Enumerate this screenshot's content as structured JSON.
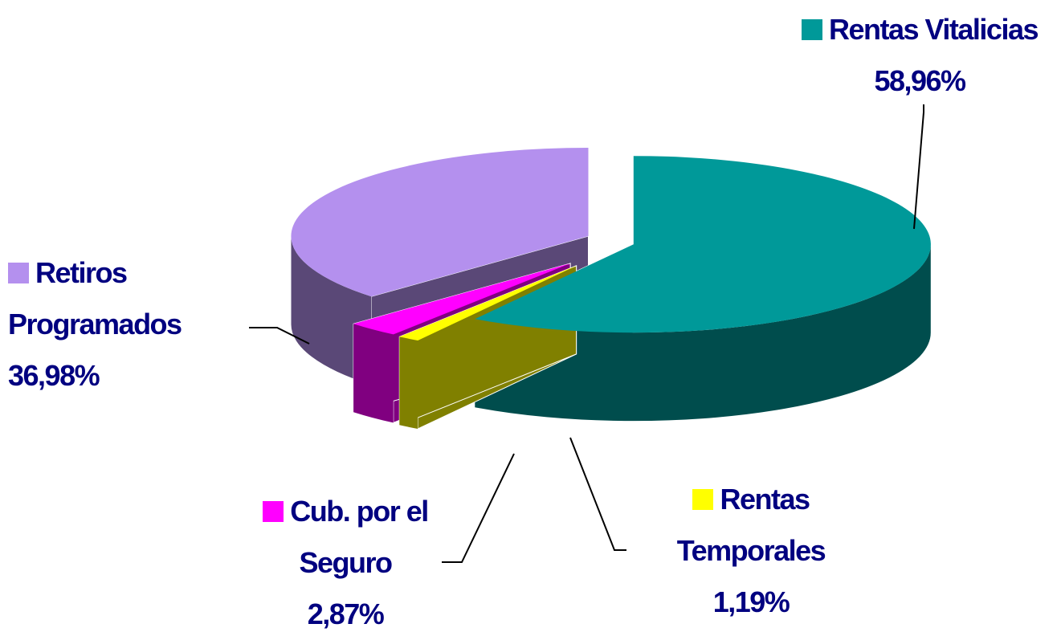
{
  "chart_data": {
    "type": "pie",
    "categories": [
      "Rentas Vitalicias",
      "Rentas Temporales",
      "Cub. por el Seguro",
      "Retiros Programados"
    ],
    "values": [
      58.96,
      1.19,
      2.87,
      36.98
    ],
    "value_labels": [
      "58,96%",
      "1,19%",
      "2,87%",
      "36,98%"
    ],
    "colors": [
      "#009999",
      "#ffff00",
      "#ff00ff",
      "#b490ee"
    ]
  }
}
